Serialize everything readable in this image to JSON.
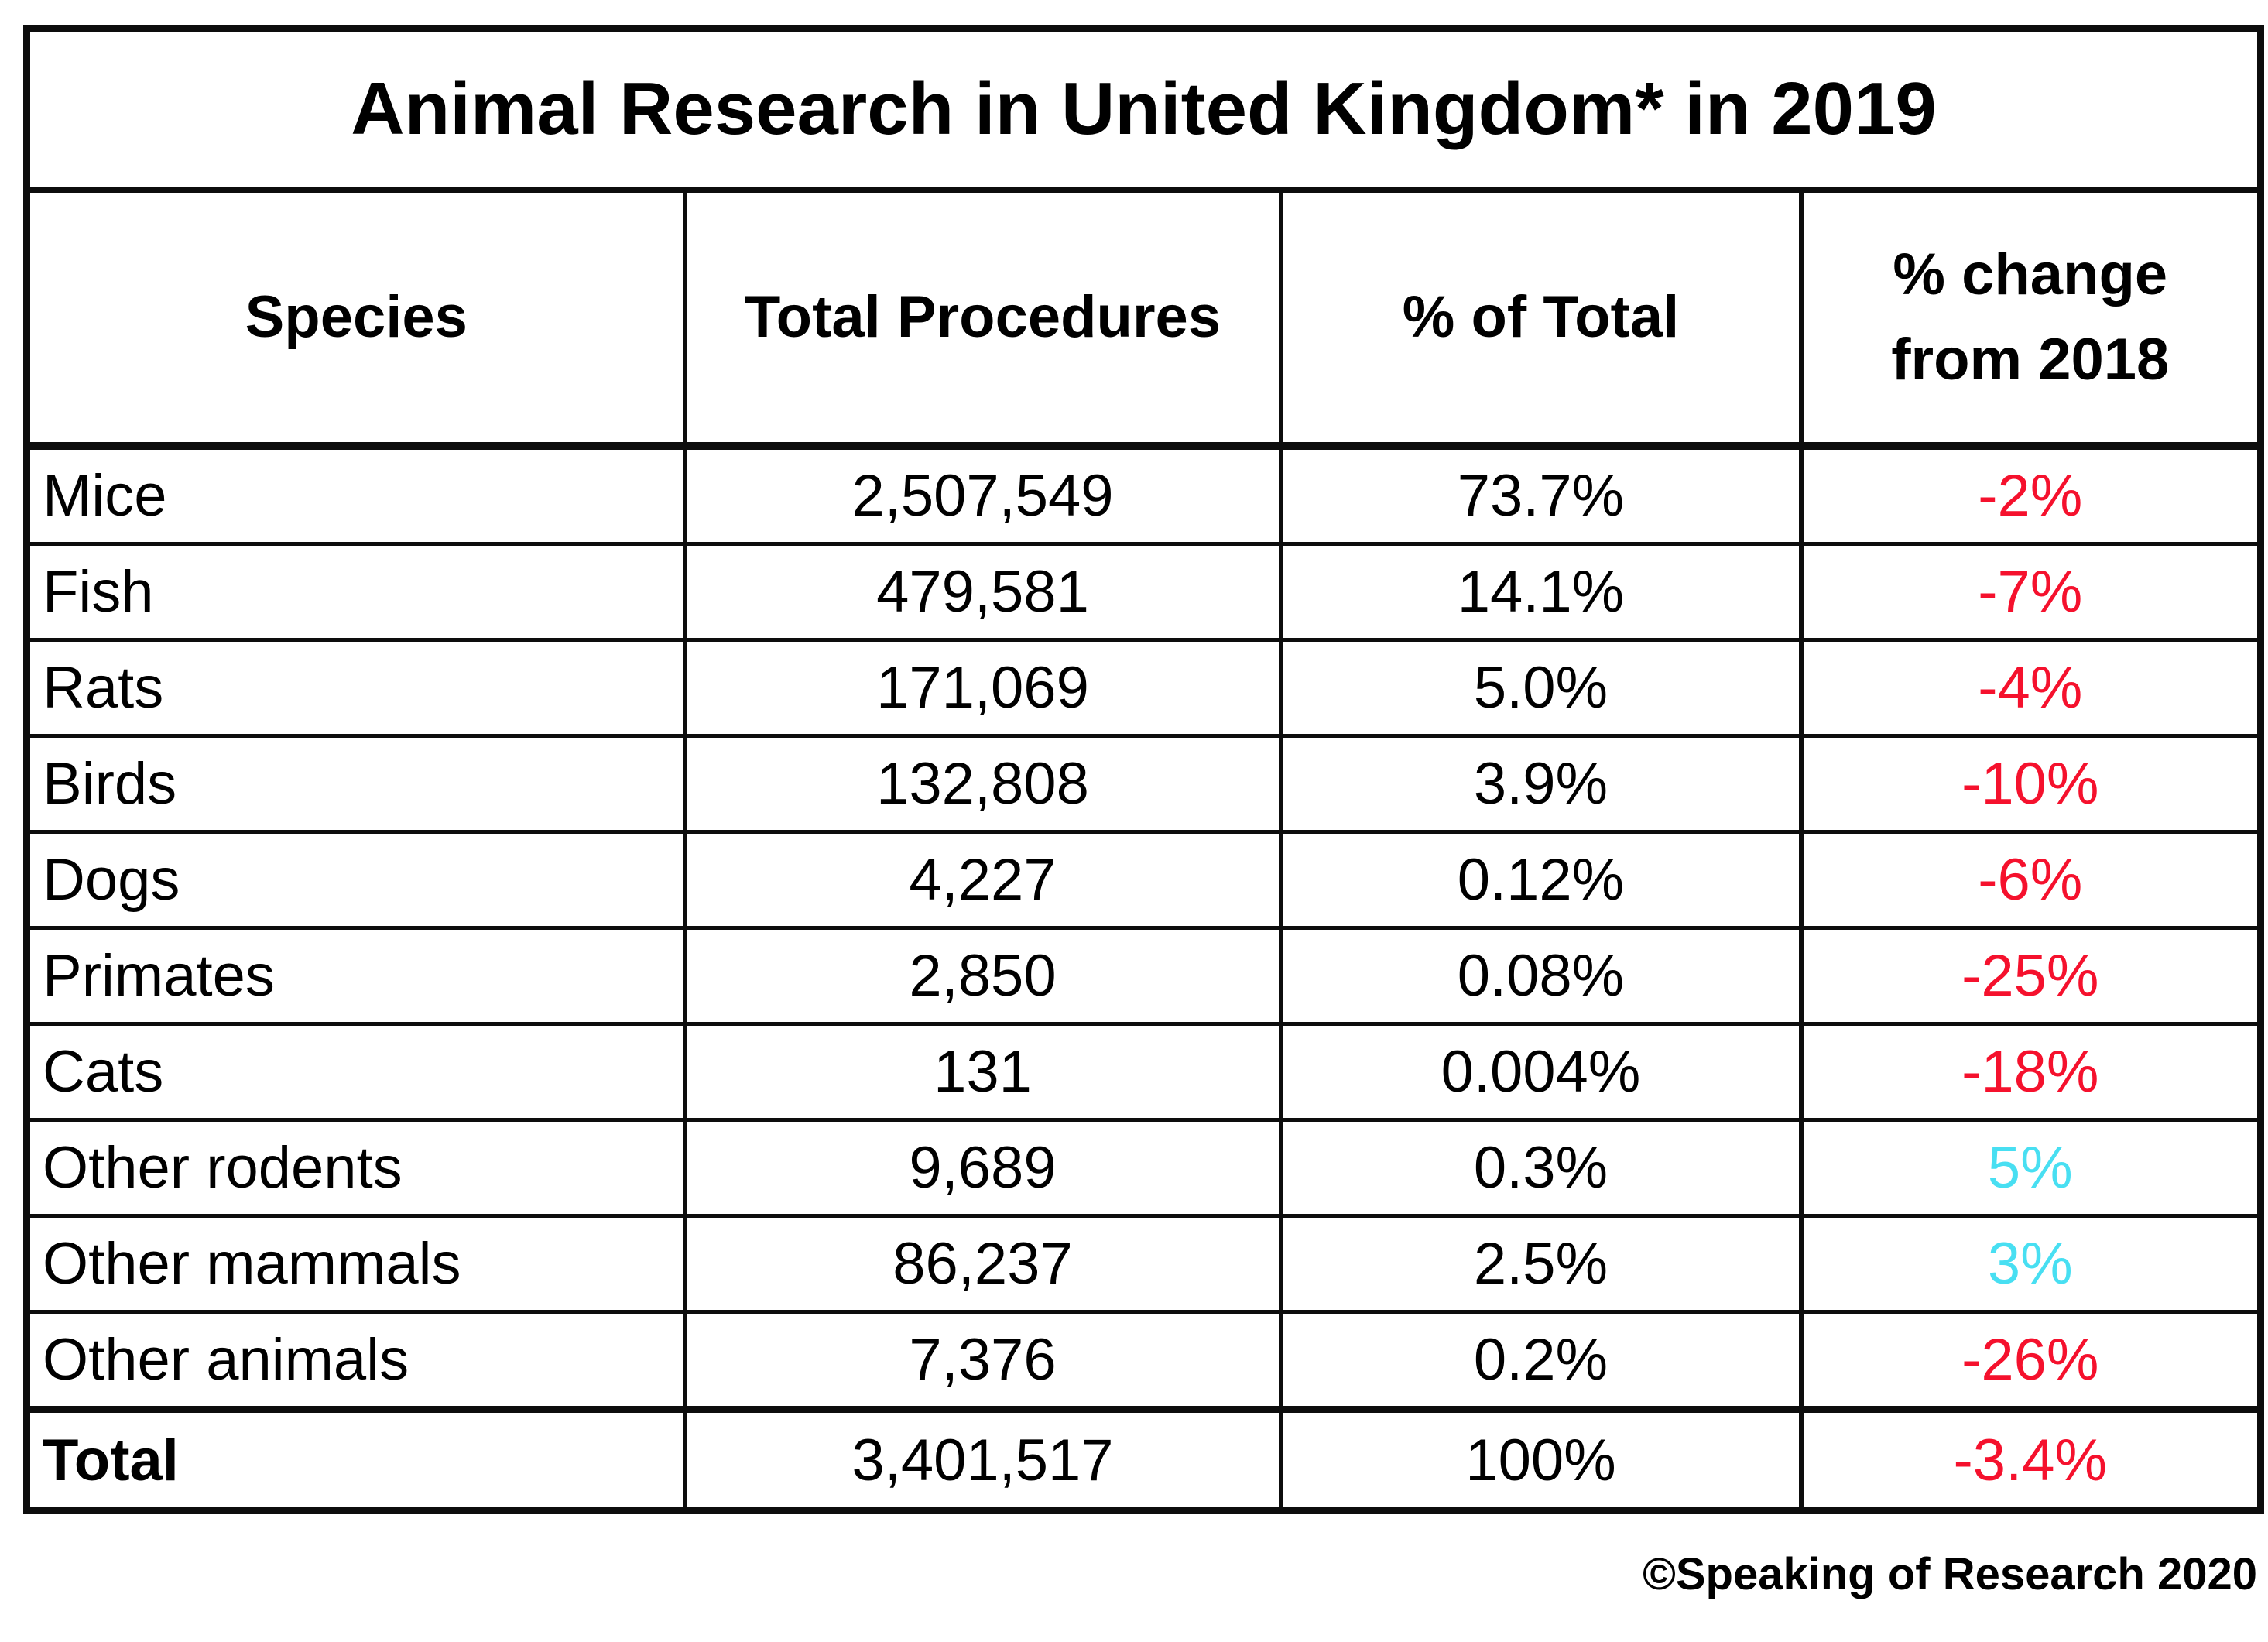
{
  "chart_data": {
    "type": "table",
    "title": "Animal Research in United Kingdom* in 2019",
    "columns": [
      "Species",
      "Total Procedures",
      "% of Total",
      "% change from 2018"
    ],
    "rows": [
      {
        "species": "Mice",
        "total_procedures": "2,507,549",
        "pct_of_total": "73.7%",
        "pct_change": "-2%",
        "change_direction": "down"
      },
      {
        "species": "Fish",
        "total_procedures": "479,581",
        "pct_of_total": "14.1%",
        "pct_change": "-7%",
        "change_direction": "down"
      },
      {
        "species": "Rats",
        "total_procedures": "171,069",
        "pct_of_total": "5.0%",
        "pct_change": "-4%",
        "change_direction": "down"
      },
      {
        "species": "Birds",
        "total_procedures": "132,808",
        "pct_of_total": "3.9%",
        "pct_change": "-10%",
        "change_direction": "down"
      },
      {
        "species": "Dogs",
        "total_procedures": "4,227",
        "pct_of_total": "0.12%",
        "pct_change": "-6%",
        "change_direction": "down"
      },
      {
        "species": "Primates",
        "total_procedures": "2,850",
        "pct_of_total": "0.08%",
        "pct_change": "-25%",
        "change_direction": "down"
      },
      {
        "species": "Cats",
        "total_procedures": "131",
        "pct_of_total": "0.004%",
        "pct_change": "-18%",
        "change_direction": "down"
      },
      {
        "species": "Other rodents",
        "total_procedures": "9,689",
        "pct_of_total": "0.3%",
        "pct_change": "5%",
        "change_direction": "up"
      },
      {
        "species": "Other mammals",
        "total_procedures": "86,237",
        "pct_of_total": "2.5%",
        "pct_change": "3%",
        "change_direction": "up"
      },
      {
        "species": "Other animals",
        "total_procedures": "7,376",
        "pct_of_total": "0.2%",
        "pct_change": "-26%",
        "change_direction": "down"
      }
    ],
    "total_row": {
      "species": "Total",
      "total_procedures": "3,401,517",
      "pct_of_total": "100%",
      "pct_change": "-3.4%",
      "change_direction": "down"
    },
    "footer_credit": "©Speaking of Research 2020",
    "colors": {
      "decrease_text": "#f5112d",
      "increase_text": "#48dff2",
      "border": "#0d0d0d",
      "background": "#ffffff"
    },
    "layout_hints": {
      "grid": "all-cells-ruled",
      "heavy_rules": [
        "below-title",
        "below-header",
        "above-total-row",
        "outer-frame"
      ],
      "value_alignment": "centered",
      "species_alignment": "left"
    }
  }
}
